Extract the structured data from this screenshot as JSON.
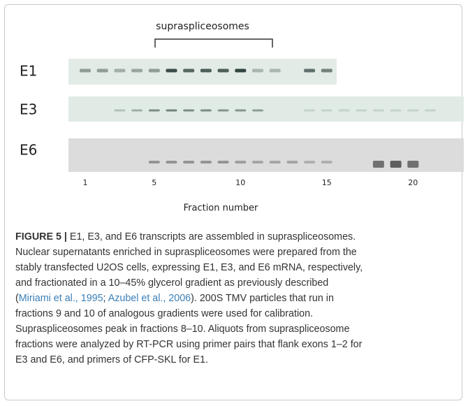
{
  "figure": {
    "bracket_label": "supraspliceosomes",
    "rows": [
      "E1",
      "E3",
      "E6"
    ],
    "lane_labels": [
      "1",
      "5",
      "10",
      "15",
      "20"
    ],
    "axis_label": "Fraction number"
  },
  "caption": {
    "label": "FIGURE 5 |",
    "lines": [
      "E1, E3, and E6 transcripts are assembled in supraspliceosomes.",
      "Nuclear supernatants enriched in supraspliceosomes were prepared from the",
      "stably transfected U2OS cells, expressing E1, E3, and E6 mRNA, respectively,",
      "and fractionated in a 10–45% glycerol gradient as previously described",
      "fractions 9 and 10 of analogous gradients were used for calibration.",
      "Supraspliceosomes peak in fractions 8–10. Aliquots from supraspliceosome",
      "fractions were analyzed by RT-PCR using primer pairs that flank exons 1–2 for",
      "E3 and E6, and primers of CFP-SKL for E1."
    ],
    "line5": [
      "(",
      "Miriami et al., 1995",
      "; ",
      "Azubel et al., 2006",
      "). 200S TMV particles that run in"
    ]
  }
}
